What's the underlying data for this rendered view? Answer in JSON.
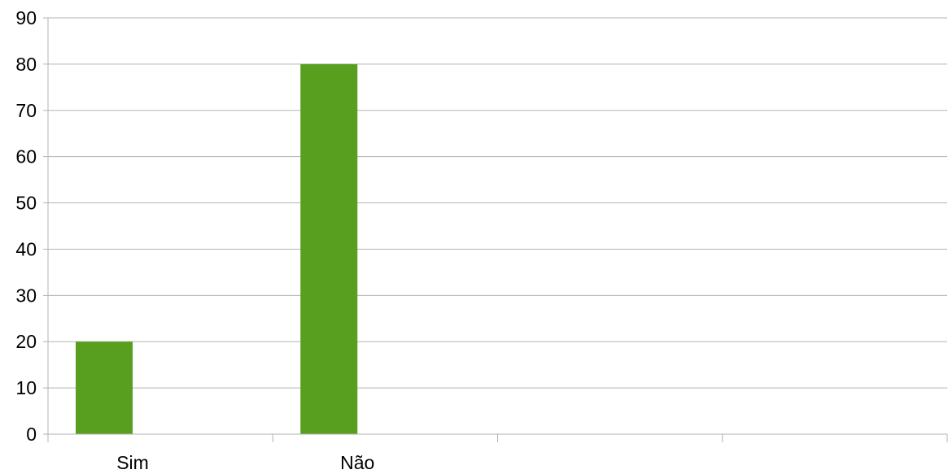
{
  "chart_data": {
    "type": "bar",
    "categories": [
      "Sim",
      "Não",
      "",
      ""
    ],
    "series": [
      {
        "values": [
          20,
          80,
          null,
          null
        ],
        "color": "#589e1f"
      }
    ],
    "title": "",
    "xlabel": "",
    "ylabel": "",
    "ylim": [
      0,
      90
    ],
    "yticks": [
      0,
      10,
      20,
      30,
      40,
      50,
      60,
      70,
      80,
      90
    ],
    "grid": true,
    "legend": "none"
  }
}
